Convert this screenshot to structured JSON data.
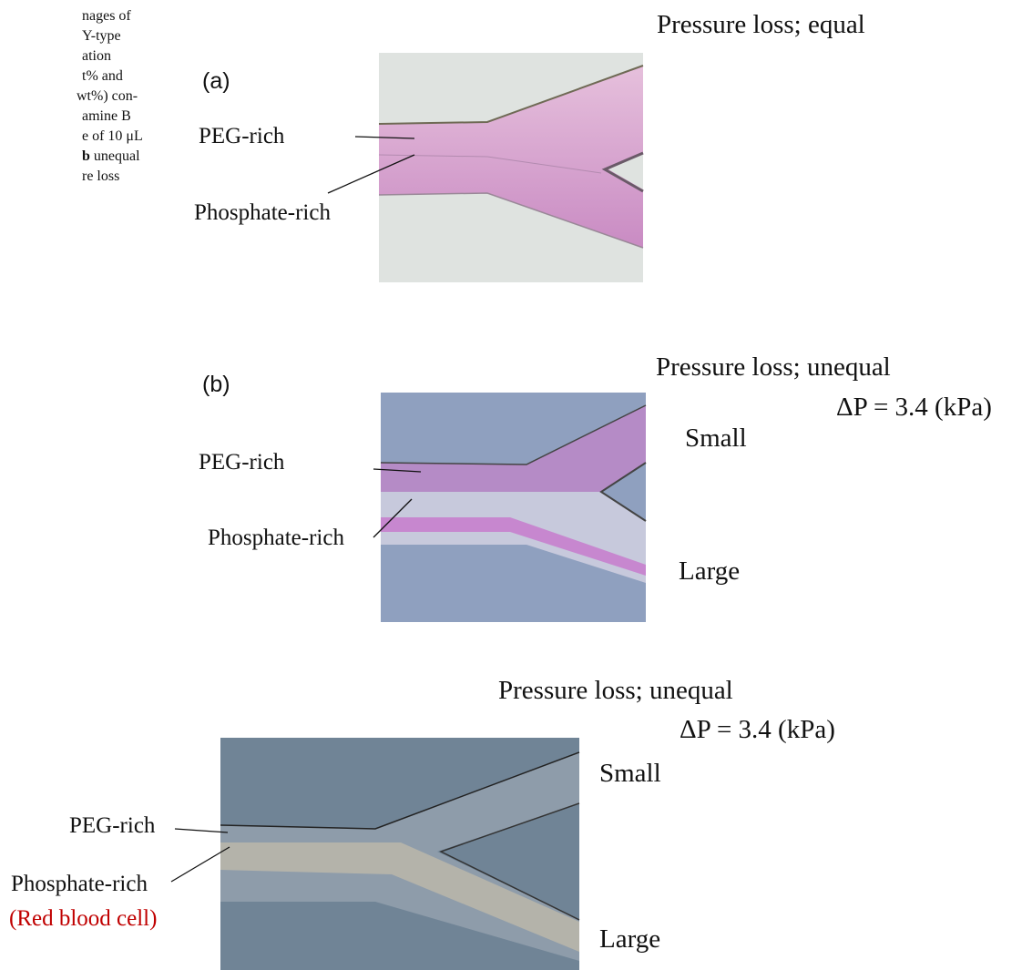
{
  "caption": {
    "lines": [
      "nages of",
      "Y-type",
      "ation",
      "t% and",
      " wt%) con-",
      "amine B",
      "e of 10 μL"
    ],
    "bold_line": {
      "bold": "b",
      "rest": " unequal"
    },
    "last_line": "re loss"
  },
  "panels": [
    {
      "label": "(a)",
      "upper_phase": "PEG-rich",
      "lower_phase": "Phosphate-rich",
      "condition": "Pressure loss; equal"
    },
    {
      "label": "(b)",
      "upper_phase": "PEG-rich",
      "lower_phase": "Phosphate-rich",
      "condition": "Pressure loss; unequal",
      "pressure": "ΔP = 3.4 (kPa)",
      "upper_outlet": "Small",
      "lower_outlet": "Large"
    },
    {
      "upper_phase": "PEG-rich",
      "lower_phase": "Phosphate-rich",
      "note": "(Red blood cell)",
      "condition": "Pressure loss; unequal",
      "pressure": "ΔP = 3.4 (kPa)",
      "upper_outlet": "Small",
      "lower_outlet": "Large"
    }
  ]
}
